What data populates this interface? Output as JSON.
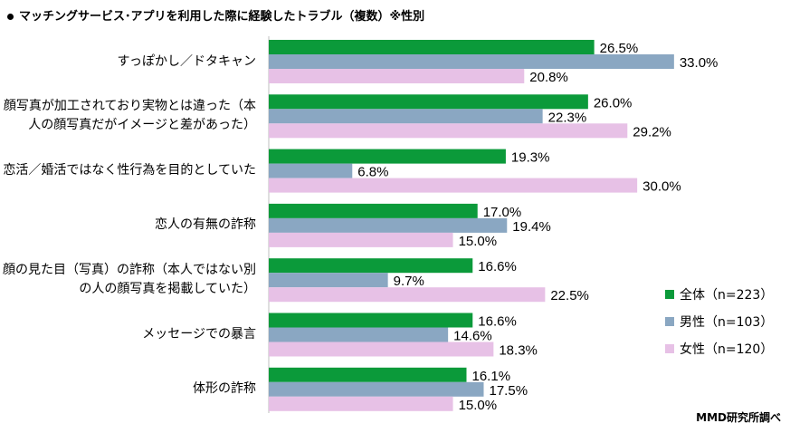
{
  "title": "マッチングサービス･アプリを利用した際に経験したトラブル（複数）※性別",
  "credit": "MMD研究所調べ",
  "colors": {
    "total": "#0b9a3a",
    "male": "#8aa7c2",
    "female": "#e7c1e6"
  },
  "chart_data": {
    "type": "bar",
    "orientation": "horizontal",
    "title": "マッチングサービス･アプリを利用した際に経験したトラブル（複数）※性別",
    "categories": [
      "すっぽかし／ドタキャン",
      "顔写真が加工されており実物とは違った（本人の顔写真だがイメージと差があった）",
      "恋活／婚活ではなく性行為を目的としていた",
      "恋人の有無の詐称",
      "顔の見た目（写真）の詐称（本人ではない別の人の顔写真を掲載していた）",
      "メッセージでの暴言",
      "体形の詐称"
    ],
    "series": [
      {
        "name": "全体（n=223）",
        "values": [
          26.5,
          26.0,
          19.3,
          17.0,
          16.6,
          16.6,
          16.1
        ]
      },
      {
        "name": "男性（n=103）",
        "values": [
          33.0,
          22.3,
          6.8,
          19.4,
          9.7,
          14.6,
          17.5
        ]
      },
      {
        "name": "女性（n=120）",
        "values": [
          20.8,
          29.2,
          30.0,
          15.0,
          22.5,
          18.3,
          15.0
        ]
      }
    ],
    "value_suffix": "%",
    "xlim": [
      0,
      35
    ],
    "legend_position": "right"
  }
}
